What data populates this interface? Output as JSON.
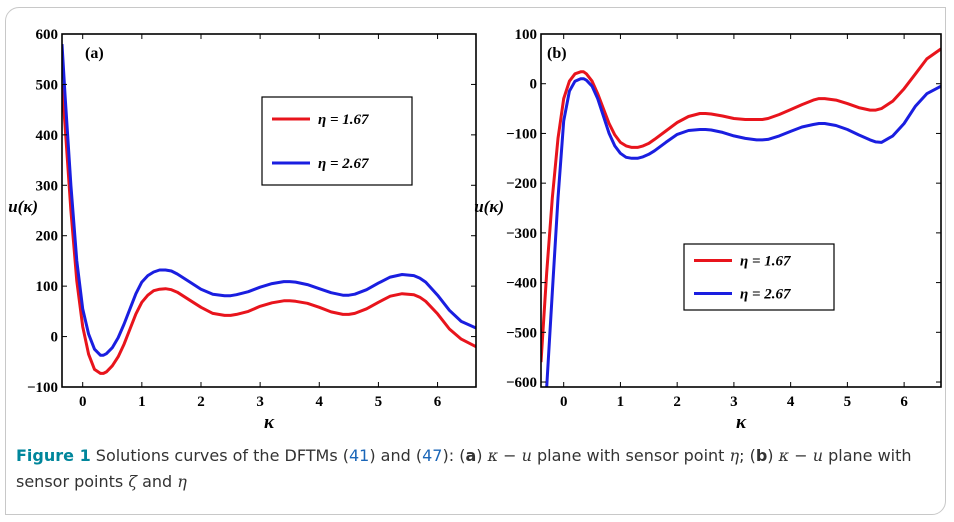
{
  "chart_data": [
    {
      "type": "line",
      "panel_label": "(a)",
      "ylabel": "u(κ)",
      "xlabel": "κ",
      "xlim": [
        -0.35,
        6.65
      ],
      "ylim": [
        -100,
        600
      ],
      "xticks": [
        0,
        1,
        2,
        3,
        4,
        5,
        6
      ],
      "yticks": [
        -100,
        0,
        100,
        200,
        300,
        400,
        500,
        600
      ],
      "legend_position": "upper-right",
      "series": [
        {
          "name": "η = 1.67",
          "color": "#e8141c",
          "x": [
            -0.35,
            -0.3,
            -0.2,
            -0.1,
            0.0,
            0.1,
            0.2,
            0.3,
            0.35,
            0.4,
            0.5,
            0.6,
            0.7,
            0.8,
            0.9,
            1.0,
            1.1,
            1.2,
            1.3,
            1.4,
            1.5,
            1.6,
            1.8,
            2.0,
            2.2,
            2.4,
            2.5,
            2.6,
            2.8,
            3.0,
            3.2,
            3.4,
            3.5,
            3.6,
            3.8,
            4.0,
            4.2,
            4.4,
            4.5,
            4.6,
            4.8,
            5.0,
            5.2,
            5.4,
            5.6,
            5.7,
            5.8,
            6.0,
            6.2,
            6.4,
            6.65
          ],
          "y": [
            500,
            420,
            250,
            110,
            20,
            -35,
            -65,
            -73,
            -73,
            -70,
            -58,
            -40,
            -15,
            15,
            45,
            68,
            82,
            91,
            94,
            95,
            93,
            88,
            73,
            58,
            46,
            42,
            42,
            44,
            50,
            60,
            67,
            71,
            71,
            70,
            66,
            58,
            49,
            44,
            44,
            46,
            55,
            68,
            80,
            85,
            83,
            78,
            70,
            45,
            15,
            -5,
            -20
          ]
        },
        {
          "name": "η = 2.67",
          "color": "#1a1ee0",
          "x": [
            -0.35,
            -0.3,
            -0.2,
            -0.1,
            0.0,
            0.1,
            0.2,
            0.3,
            0.35,
            0.4,
            0.5,
            0.6,
            0.7,
            0.8,
            0.9,
            1.0,
            1.1,
            1.2,
            1.3,
            1.4,
            1.5,
            1.6,
            1.8,
            2.0,
            2.2,
            2.4,
            2.5,
            2.6,
            2.8,
            3.0,
            3.2,
            3.4,
            3.5,
            3.6,
            3.8,
            4.0,
            4.2,
            4.4,
            4.5,
            4.6,
            4.8,
            5.0,
            5.2,
            5.4,
            5.6,
            5.7,
            5.8,
            6.0,
            6.2,
            6.4,
            6.65
          ],
          "y": [
            580,
            480,
            300,
            150,
            55,
            5,
            -25,
            -37,
            -37,
            -34,
            -22,
            -2,
            25,
            55,
            85,
            108,
            121,
            128,
            132,
            132,
            130,
            124,
            109,
            94,
            84,
            81,
            81,
            83,
            89,
            98,
            105,
            109,
            109,
            108,
            103,
            95,
            87,
            82,
            82,
            84,
            93,
            106,
            118,
            123,
            121,
            116,
            108,
            82,
            52,
            30,
            17
          ]
        }
      ]
    },
    {
      "type": "line",
      "panel_label": "(b)",
      "ylabel": "u(κ)",
      "xlabel": "κ",
      "xlim": [
        -0.4,
        6.65
      ],
      "ylim": [
        -610,
        100
      ],
      "xticks": [
        0,
        1,
        2,
        3,
        4,
        5,
        6
      ],
      "yticks": [
        -600,
        -500,
        -400,
        -300,
        -200,
        -100,
        0,
        100
      ],
      "legend_position": "lower-right",
      "series": [
        {
          "name": "η = 1.67",
          "color": "#e8141c",
          "x": [
            -0.4,
            -0.3,
            -0.2,
            -0.1,
            0.0,
            0.1,
            0.2,
            0.3,
            0.35,
            0.4,
            0.5,
            0.6,
            0.7,
            0.8,
            0.9,
            1.0,
            1.1,
            1.2,
            1.3,
            1.4,
            1.5,
            1.6,
            1.8,
            2.0,
            2.2,
            2.4,
            2.5,
            2.6,
            2.8,
            3.0,
            3.2,
            3.4,
            3.5,
            3.6,
            3.8,
            4.0,
            4.2,
            4.4,
            4.5,
            4.6,
            4.8,
            5.0,
            5.2,
            5.4,
            5.5,
            5.6,
            5.8,
            6.0,
            6.2,
            6.4,
            6.65
          ],
          "y": [
            -560,
            -380,
            -230,
            -110,
            -30,
            5,
            20,
            24,
            24,
            20,
            5,
            -20,
            -50,
            -80,
            -103,
            -118,
            -125,
            -128,
            -128,
            -125,
            -120,
            -112,
            -95,
            -78,
            -66,
            -60,
            -60,
            -61,
            -65,
            -70,
            -72,
            -72,
            -72,
            -70,
            -62,
            -52,
            -42,
            -33,
            -30,
            -30,
            -33,
            -40,
            -48,
            -53,
            -53,
            -50,
            -35,
            -10,
            20,
            50,
            70
          ]
        },
        {
          "name": "η = 2.67",
          "color": "#1a1ee0",
          "x": [
            -0.3,
            -0.2,
            -0.1,
            0.0,
            0.1,
            0.2,
            0.3,
            0.35,
            0.4,
            0.5,
            0.6,
            0.7,
            0.8,
            0.9,
            1.0,
            1.1,
            1.2,
            1.3,
            1.4,
            1.5,
            1.6,
            1.8,
            2.0,
            2.2,
            2.4,
            2.5,
            2.6,
            2.8,
            3.0,
            3.2,
            3.4,
            3.5,
            3.6,
            3.8,
            4.0,
            4.2,
            4.4,
            4.5,
            4.6,
            4.8,
            5.0,
            5.2,
            5.4,
            5.5,
            5.6,
            5.8,
            6.0,
            6.2,
            6.4,
            6.65
          ],
          "y": [
            -610,
            -420,
            -230,
            -75,
            -15,
            5,
            10,
            10,
            7,
            -5,
            -30,
            -65,
            -100,
            -125,
            -140,
            -148,
            -150,
            -150,
            -147,
            -142,
            -135,
            -118,
            -102,
            -94,
            -92,
            -92,
            -93,
            -98,
            -105,
            -110,
            -113,
            -113,
            -112,
            -105,
            -96,
            -87,
            -82,
            -80,
            -80,
            -84,
            -92,
            -103,
            -113,
            -117,
            -118,
            -105,
            -80,
            -45,
            -20,
            -5
          ]
        }
      ]
    }
  ],
  "caption": {
    "figure_label": "Figure 1",
    "text_1": "  Solutions curves of the DFTMs (",
    "ref_1": "41",
    "text_2": ") and (",
    "ref_2": "47",
    "text_3": "): (",
    "bold_a": "a",
    "text_4": ") ",
    "math_1": "κ − u",
    "text_5": " plane with sensor point ",
    "math_2": "η",
    "text_6": "; (",
    "bold_b": "b",
    "text_7": ") ",
    "math_3": "κ − u",
    "text_8": " plane with sensor points ",
    "math_4": "ζ",
    "text_9": " and ",
    "math_5": "η"
  }
}
